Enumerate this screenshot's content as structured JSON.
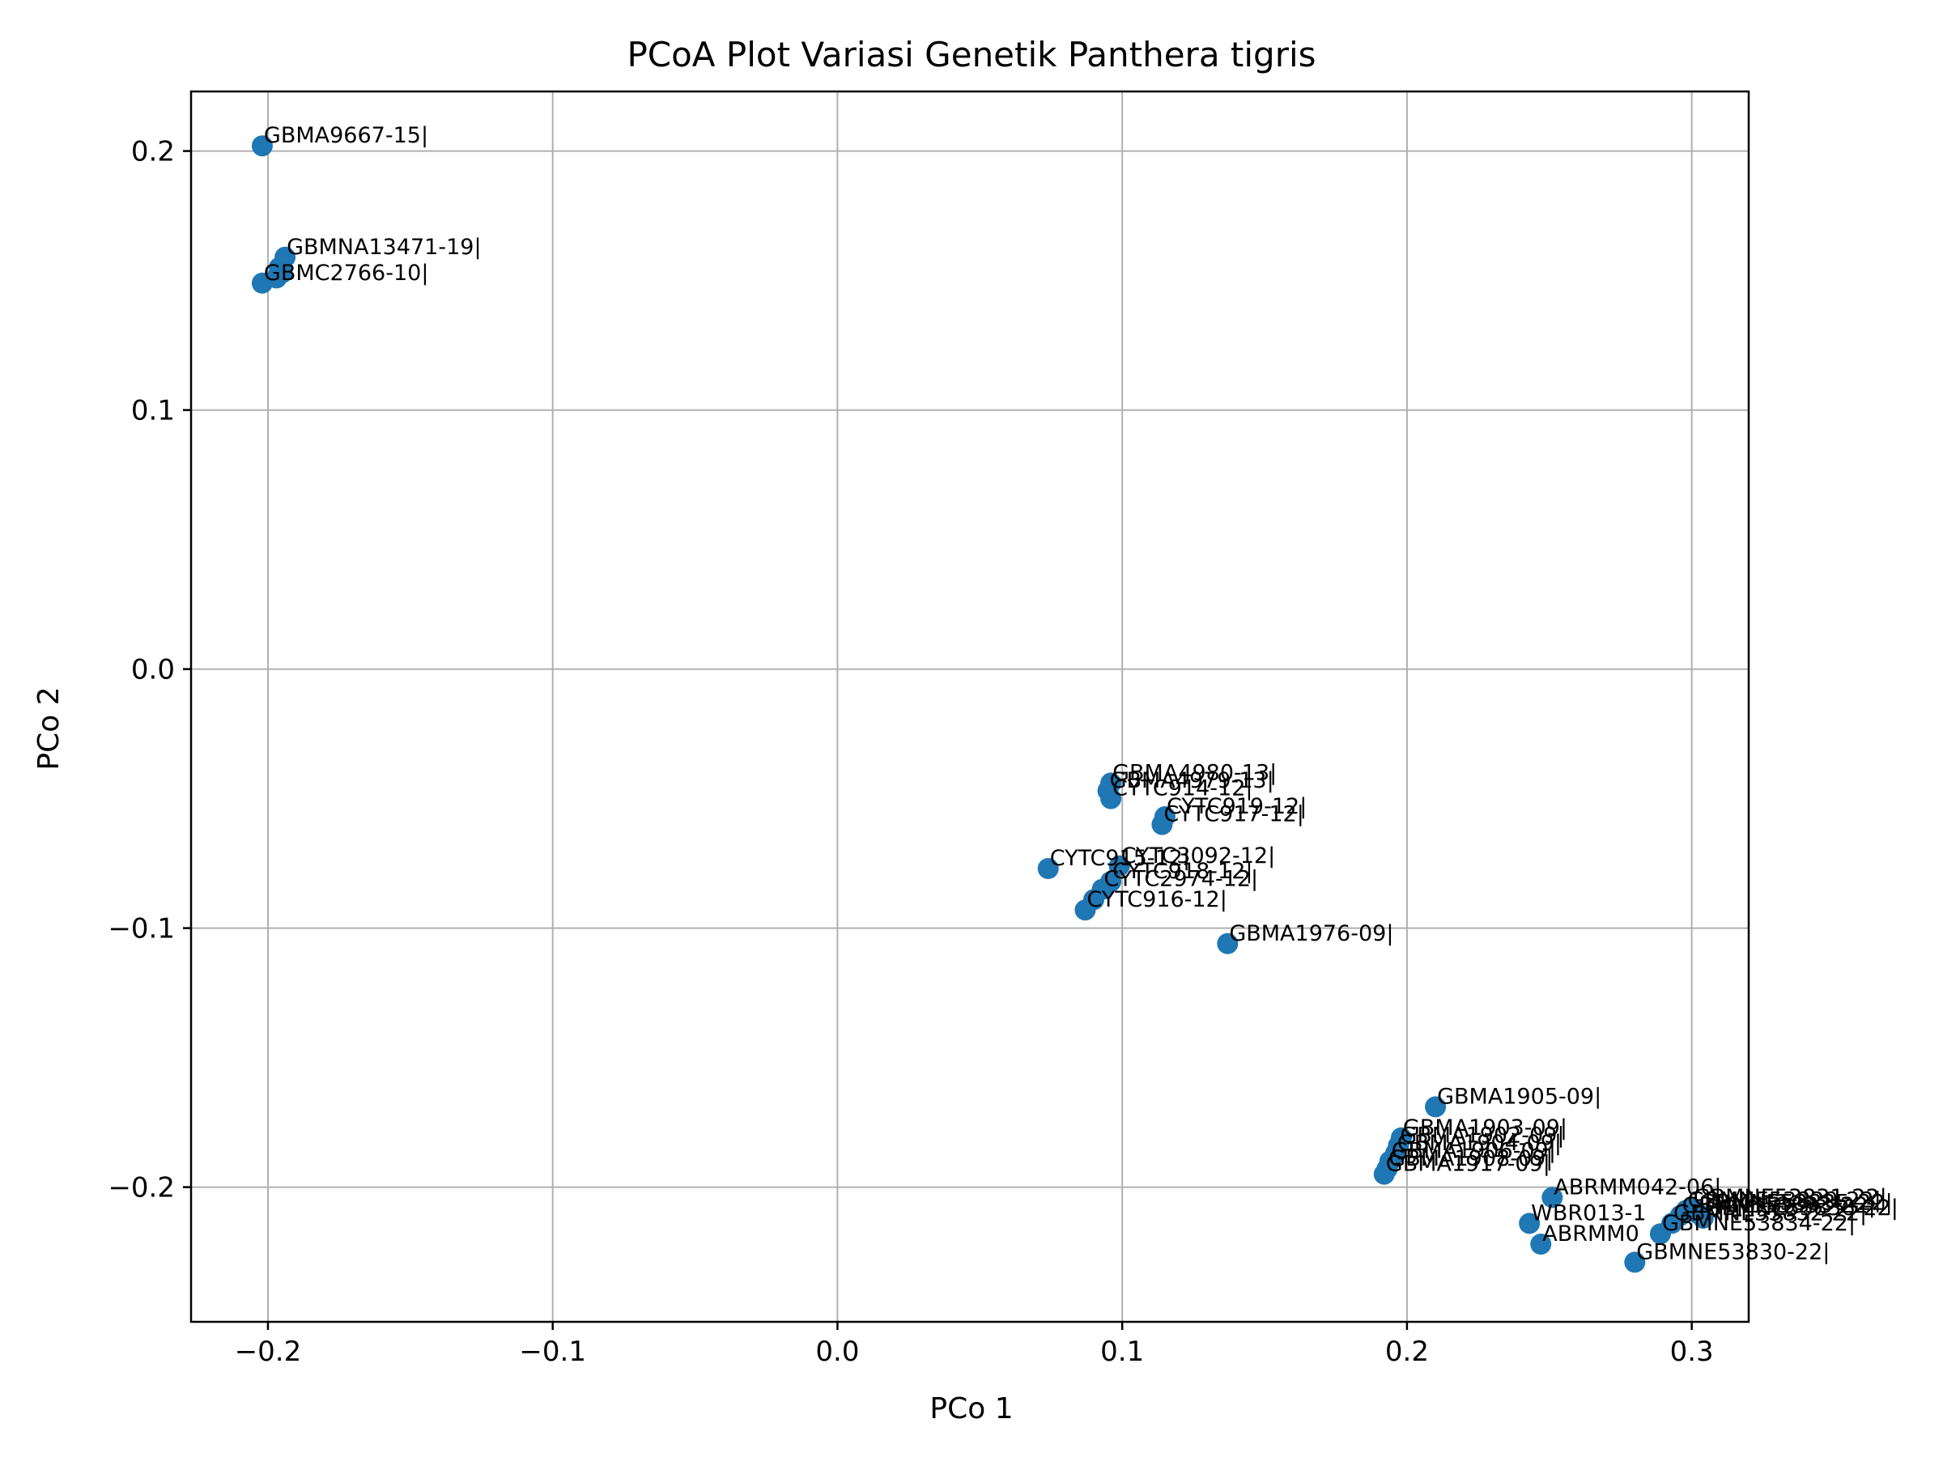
{
  "chart_data": {
    "type": "scatter",
    "title": "PCoA Plot Variasi Genetik Panthera tigris",
    "xlabel": "PCo 1",
    "ylabel": "PCo 2",
    "xlim": [
      -0.227,
      0.32
    ],
    "ylim": [
      -0.252,
      0.223
    ],
    "xticks": [
      -0.2,
      -0.1,
      0.0,
      0.1,
      0.2,
      0.3
    ],
    "xtick_labels": [
      "−0.2",
      "−0.1",
      "0.0",
      "0.1",
      "0.2",
      "0.3"
    ],
    "yticks": [
      0.2,
      0.1,
      0.0,
      -0.1,
      -0.2
    ],
    "ytick_labels": [
      "0.2",
      "0.1",
      "0.0",
      "−0.1",
      "−0.2"
    ],
    "grid": true,
    "color": "#1f77b4",
    "points": [
      {
        "x": -0.202,
        "y": 0.202,
        "label": "GBMA9667-15|"
      },
      {
        "x": -0.194,
        "y": 0.159,
        "label": "GBMNA13471-19|"
      },
      {
        "x": -0.196,
        "y": 0.155,
        "label": ""
      },
      {
        "x": -0.195,
        "y": 0.153,
        "label": ""
      },
      {
        "x": -0.197,
        "y": 0.151,
        "label": ""
      },
      {
        "x": -0.202,
        "y": 0.149,
        "label": "GBMC2766-10|"
      },
      {
        "x": 0.096,
        "y": -0.044,
        "label": "GBMA4980-13|"
      },
      {
        "x": 0.095,
        "y": -0.047,
        "label": "GBMA4979-13|"
      },
      {
        "x": 0.096,
        "y": -0.05,
        "label": "CYTC914-12|"
      },
      {
        "x": 0.115,
        "y": -0.057,
        "label": "CYTC919-12|"
      },
      {
        "x": 0.114,
        "y": -0.06,
        "label": "CYTC917-12|"
      },
      {
        "x": 0.074,
        "y": -0.077,
        "label": "CYTC915-12|"
      },
      {
        "x": 0.099,
        "y": -0.076,
        "label": "CYTC3092-12|"
      },
      {
        "x": 0.096,
        "y": -0.082,
        "label": "CYTC918-12|"
      },
      {
        "x": 0.093,
        "y": -0.085,
        "label": "CYTC2974-12|"
      },
      {
        "x": 0.09,
        "y": -0.089,
        "label": ""
      },
      {
        "x": 0.087,
        "y": -0.093,
        "label": "CYTC916-12|"
      },
      {
        "x": 0.137,
        "y": -0.106,
        "label": "GBMA1976-09|"
      },
      {
        "x": 0.21,
        "y": -0.169,
        "label": "GBMA1905-09|"
      },
      {
        "x": 0.198,
        "y": -0.181,
        "label": "GBMA1903-09|"
      },
      {
        "x": 0.197,
        "y": -0.184,
        "label": "GBMA1902-09|"
      },
      {
        "x": 0.196,
        "y": -0.187,
        "label": "GBMA1904-09|"
      },
      {
        "x": 0.194,
        "y": -0.19,
        "label": "GBMA1906-09|"
      },
      {
        "x": 0.193,
        "y": -0.193,
        "label": "GBMA1908-09|"
      },
      {
        "x": 0.192,
        "y": -0.195,
        "label": "GBMA1917-09|"
      },
      {
        "x": 0.251,
        "y": -0.204,
        "label": "ABRMM042-06|"
      },
      {
        "x": 0.243,
        "y": -0.214,
        "label": "WBR013-1"
      },
      {
        "x": 0.247,
        "y": -0.222,
        "label": "ABRMM0"
      },
      {
        "x": 0.289,
        "y": -0.218,
        "label": "GBMNE53834-22|"
      },
      {
        "x": 0.28,
        "y": -0.229,
        "label": "GBMNE53830-22|"
      },
      {
        "x": 0.293,
        "y": -0.214,
        "label": "GBMNE53832-22|"
      },
      {
        "x": 0.296,
        "y": -0.211,
        "label": "GBMNE53833-22|"
      },
      {
        "x": 0.298,
        "y": -0.209,
        "label": "GBMNE53829-22|"
      },
      {
        "x": 0.3,
        "y": -0.208,
        "label": "GBMNE53831-22|"
      },
      {
        "x": 0.302,
        "y": -0.21,
        "label": "GBMNE53835-22|"
      },
      {
        "x": 0.304,
        "y": -0.212,
        "label": "GBMNE53836-22|"
      }
    ]
  }
}
